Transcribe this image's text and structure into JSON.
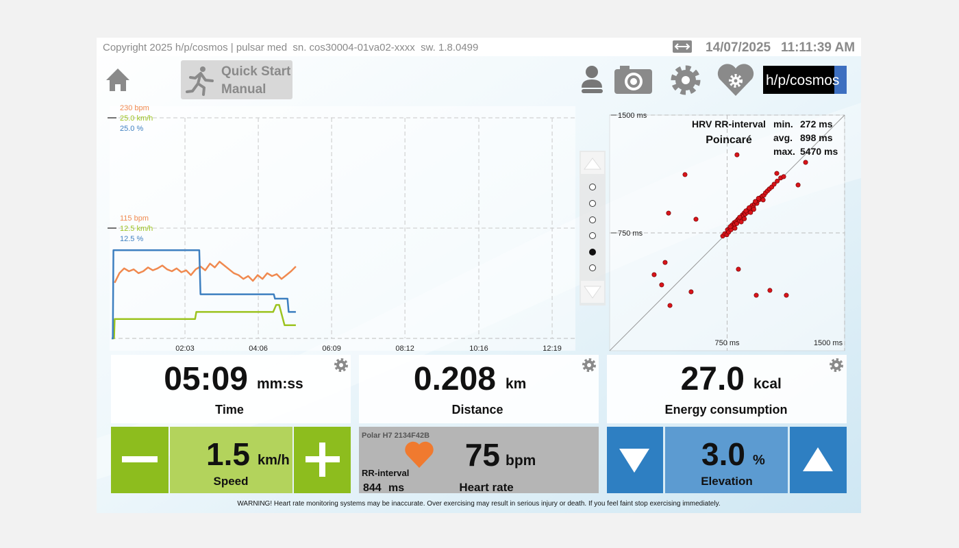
{
  "header": {
    "copyright": "Copyright 2025 h/p/cosmos | pulsar med  sn. cos30004-01va02-xxxx  sw. 1.8.0499",
    "date": "14/07/2025",
    "time": "11:11:39 AM"
  },
  "toolbar": {
    "quick_start": "Quick Start",
    "manual": "Manual",
    "logo": "h/p/cosmos"
  },
  "trend": {
    "xlim": [
      0,
      778
    ],
    "xticks": [
      {
        "value": 123,
        "label": "02:03"
      },
      {
        "value": 246,
        "label": "04:06"
      },
      {
        "value": 369,
        "label": "06:09"
      },
      {
        "value": 492,
        "label": "08:12"
      },
      {
        "value": 616,
        "label": "10:16"
      },
      {
        "value": 739,
        "label": "12:19"
      }
    ],
    "series": [
      {
        "color": "#f0894f",
        "ylim": [
          0,
          230
        ],
        "yticks": [
          {
            "value": 115,
            "label": "115 bpm"
          },
          {
            "value": 230,
            "label": "230 bpm"
          }
        ],
        "x": [
          5,
          13,
          21,
          29,
          37,
          45,
          53,
          61,
          69,
          77,
          85,
          93,
          101,
          109,
          117,
          125,
          133,
          141,
          149,
          157,
          165,
          173,
          181,
          189,
          197,
          205,
          213,
          221,
          229,
          237,
          245,
          253,
          261,
          269,
          277,
          285,
          293,
          301,
          309
        ],
        "values": [
          58,
          68,
          73,
          70,
          72,
          68,
          70,
          74,
          71,
          73,
          76,
          72,
          70,
          73,
          69,
          71,
          66,
          72,
          75,
          71,
          78,
          74,
          80,
          76,
          72,
          68,
          66,
          62,
          65,
          60,
          66,
          62,
          68,
          65,
          67,
          62,
          66,
          70,
          75
        ]
      },
      {
        "color": "#9cc31f",
        "ylim": [
          0,
          25
        ],
        "yticks": [
          {
            "value": 12.5,
            "label": "12.5 km/h"
          },
          {
            "value": 25,
            "label": "25.0 km/h"
          }
        ],
        "x": [
          0,
          4,
          5,
          140,
          142,
          271,
          276,
          281,
          290,
          309
        ],
        "values": [
          0,
          0,
          2.2,
          2.2,
          3.0,
          3.0,
          3.8,
          3.8,
          1.5,
          1.5
        ]
      },
      {
        "color": "#3d7fc0",
        "ylim": [
          0,
          25
        ],
        "yticks": [
          {
            "value": 12.5,
            "label": "12.5 %"
          },
          {
            "value": 25,
            "label": "25.0 %"
          }
        ],
        "x": [
          0,
          2,
          3,
          147,
          149,
          272,
          274,
          295,
          297,
          309
        ],
        "values": [
          0,
          0,
          10,
          10,
          5,
          5,
          4.5,
          4.5,
          3,
          3
        ]
      }
    ]
  },
  "poincare": {
    "title": "HRV RR-interval",
    "subtitle": "Poincaré",
    "stats": [
      {
        "label": "min.",
        "value": "272 ms"
      },
      {
        "label": "avg.",
        "value": "898 ms"
      },
      {
        "label": "max.",
        "value": "5470 ms"
      }
    ],
    "color": "#d8141a",
    "xlim": [
      0,
      1500
    ],
    "ylim": [
      0,
      1500
    ],
    "xticks": [
      {
        "value": 750,
        "label": "750 ms"
      },
      {
        "value": 1500,
        "label": "1500 ms"
      }
    ],
    "yticks": [
      {
        "value": 750,
        "label": "750 ms"
      },
      {
        "value": 1500,
        "label": "1500 ms"
      }
    ],
    "x": [
      722,
      735,
      748,
      752,
      760,
      768,
      775,
      781,
      790,
      795,
      800,
      806,
      812,
      818,
      825,
      830,
      836,
      842,
      848,
      855,
      860,
      866,
      872,
      878,
      885,
      890,
      897,
      903,
      910,
      918,
      925,
      932,
      940,
      948,
      956,
      965,
      975,
      985,
      995,
      1008,
      1020,
      1035,
      1050,
      1070,
      1092,
      770,
      800,
      830,
      860,
      890,
      920,
      950,
      980,
      840,
      870,
      900,
      930,
      813,
      481,
      1251,
      1203,
      1111,
      1067,
      551,
      376,
      354,
      284,
      332,
      385,
      520,
      822,
      1023,
      936,
      1128
    ],
    "y": [
      730,
      745,
      738,
      770,
      755,
      782,
      770,
      800,
      788,
      815,
      805,
      822,
      810,
      835,
      840,
      826,
      850,
      845,
      865,
      860,
      878,
      870,
      890,
      880,
      898,
      905,
      895,
      915,
      925,
      912,
      935,
      945,
      938,
      958,
      962,
      975,
      985,
      990,
      1005,
      1018,
      1030,
      1042,
      1060,
      1080,
      1100,
      790,
      780,
      850,
      840,
      910,
      900,
      970,
      960,
      820,
      890,
      880,
      950,
      1247,
      1121,
      1199,
      1055,
      1108,
      1129,
      837,
      876,
      562,
      484,
      419,
      288,
      375,
      519,
      384,
      353,
      353
    ]
  },
  "tiles": {
    "time": {
      "value": "05:09",
      "unit": "mm:ss",
      "label": "Time"
    },
    "distance": {
      "value": "0.208",
      "unit": "km",
      "label": "Distance"
    },
    "energy": {
      "value": "27.0",
      "unit": "kcal",
      "label": "Energy consumption"
    },
    "speed": {
      "value": "1.5",
      "unit": "km/h",
      "label": "Speed"
    },
    "heart_rate": {
      "sensor": "Polar H7 2134F42B",
      "value": "75",
      "unit": "bpm",
      "label": "Heart rate",
      "rr_label": "RR-interval",
      "rr_value": "844",
      "rr_unit": "ms"
    },
    "elevation": {
      "value": "3.0",
      "unit": "%",
      "label": "Elevation"
    }
  },
  "warning": "WARNING! Heart rate monitoring systems may be inaccurate. Over exercising may result in serious injury or death. If you feel faint stop exercising immediately."
}
